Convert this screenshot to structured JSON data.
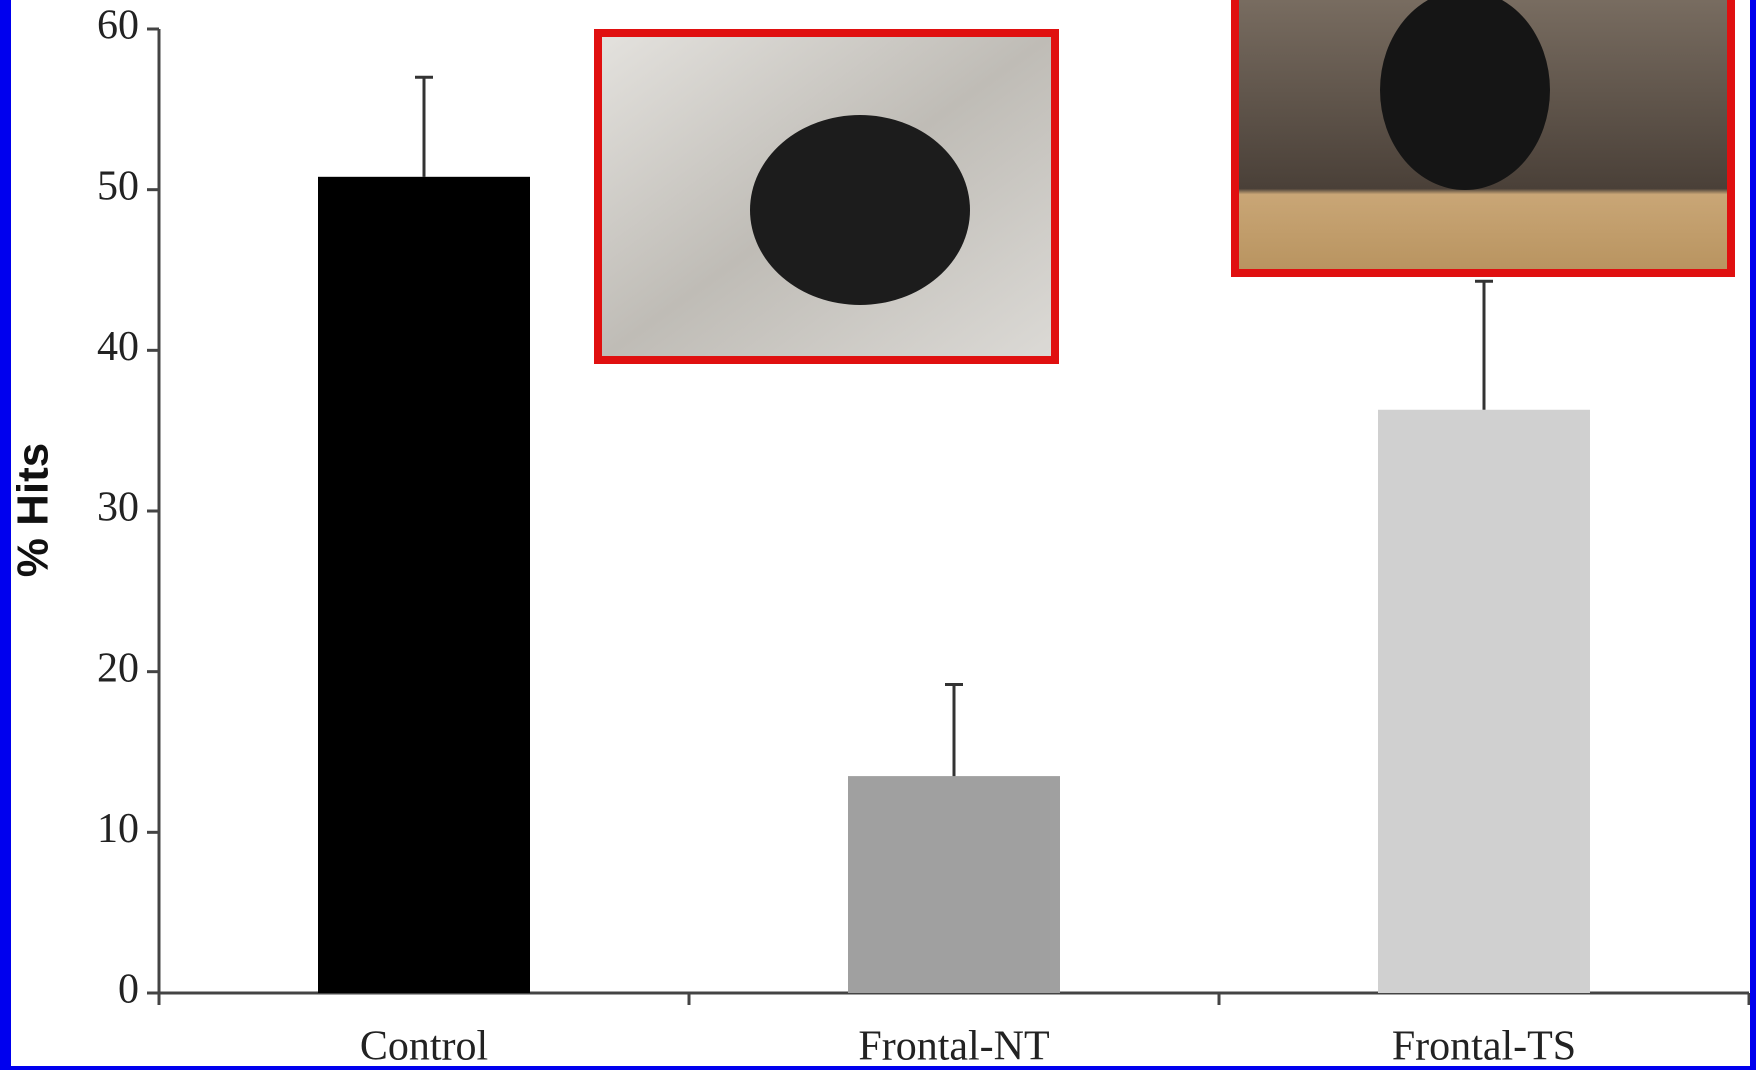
{
  "chart_data": {
    "type": "bar",
    "y_label": "% Hits",
    "categories": [
      "Control",
      "Frontal-NT",
      "Frontal-TS"
    ],
    "values": [
      50.8,
      13.5,
      36.3
    ],
    "errors": [
      6.2,
      5.7,
      8.0
    ],
    "colors": [
      "#000000",
      "#a0a0a0",
      "#d0d0d0"
    ],
    "ylim": [
      0,
      60
    ],
    "yticks": [
      0,
      10,
      20,
      30,
      40,
      50,
      60
    ],
    "grid": false
  }
}
